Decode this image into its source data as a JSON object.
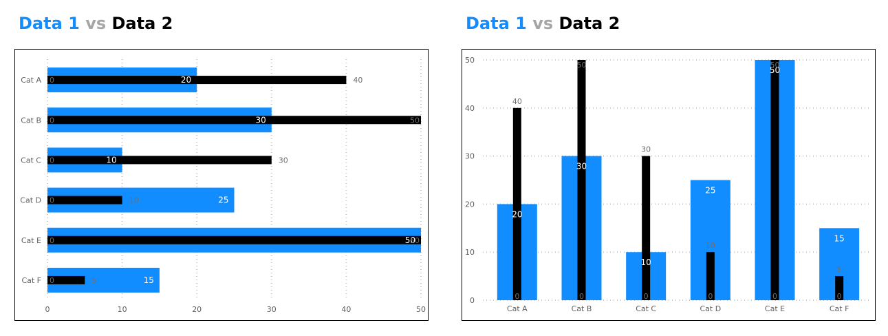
{
  "colors": {
    "series1": "#118DFF",
    "series2": "#000000",
    "title_vs": "#A6A6A6",
    "axis_text": "#605E5C",
    "grid": "#C8C6C4"
  },
  "title_parts": {
    "part1": "Data 1",
    "part2": "vs",
    "part3": "Data 2"
  },
  "chart_data": [
    {
      "type": "bar",
      "orientation": "horizontal",
      "categories": [
        "Cat A",
        "Cat B",
        "Cat C",
        "Cat D",
        "Cat E",
        "Cat F"
      ],
      "series": [
        {
          "values": [
            20,
            30,
            10,
            25,
            50,
            15
          ]
        },
        {
          "values": [
            40,
            50,
            30,
            10,
            50,
            5
          ]
        }
      ],
      "xlim": [
        0,
        50
      ],
      "ticks": [
        0,
        10,
        20,
        30,
        40,
        50
      ],
      "grid": true
    },
    {
      "type": "bar",
      "orientation": "vertical",
      "categories": [
        "Cat A",
        "Cat B",
        "Cat C",
        "Cat D",
        "Cat E",
        "Cat F"
      ],
      "series": [
        {
          "values": [
            20,
            30,
            10,
            25,
            50,
            15
          ]
        },
        {
          "values": [
            40,
            50,
            30,
            10,
            50,
            5
          ]
        }
      ],
      "ylim": [
        0,
        50
      ],
      "ticks": [
        0,
        10,
        20,
        30,
        40,
        50
      ],
      "grid": true
    }
  ]
}
